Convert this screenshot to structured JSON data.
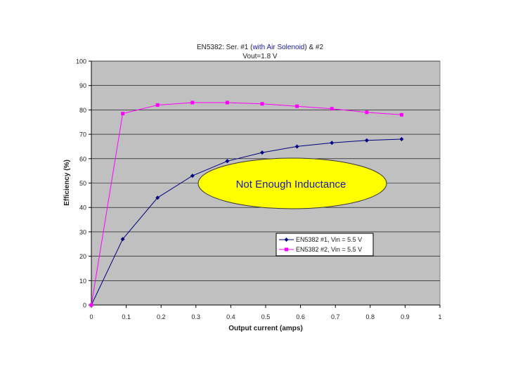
{
  "chart_data": {
    "type": "line",
    "title_prefix": "EN5382: Ser. #1 (",
    "title_highlight": "with Air Solenoid",
    "title_suffix": ") & #2",
    "subtitle": "Vout=1.8 V",
    "xlabel": "Output current (amps)",
    "ylabel": "Efficiency (%)",
    "xlim": [
      0,
      1
    ],
    "ylim": [
      0,
      100
    ],
    "x_ticks": [
      "0",
      "0.1",
      "0.2",
      "0.3",
      "0.4",
      "0.5",
      "0.6",
      "0.7",
      "0.8",
      "0.9",
      "1"
    ],
    "y_ticks": [
      "0",
      "10",
      "20",
      "30",
      "40",
      "50",
      "60",
      "70",
      "80",
      "90",
      "100"
    ],
    "grid": "horizontal",
    "plot_background": "#c0c0c0",
    "legend_position": "lower-right",
    "series": [
      {
        "name": "EN5382 #1, Vin = 5.5 V",
        "color": "#000080",
        "marker": "diamond",
        "x": [
          0,
          0.09,
          0.19,
          0.29,
          0.39,
          0.49,
          0.59,
          0.69,
          0.79,
          0.89
        ],
        "y": [
          0,
          27,
          44,
          53,
          59,
          62.5,
          65,
          66.5,
          67.5,
          68
        ]
      },
      {
        "name": "EN5382 #2, Vin = 5.5 V",
        "color": "#ff00ff",
        "marker": "square",
        "x": [
          0,
          0.09,
          0.19,
          0.29,
          0.39,
          0.49,
          0.59,
          0.69,
          0.79,
          0.89
        ],
        "y": [
          0,
          78.5,
          82,
          83,
          83,
          82.5,
          81.5,
          80.5,
          79,
          78
        ]
      }
    ],
    "annotations": [
      {
        "text": "Not Enough Inductance",
        "fill": "#ffff00"
      }
    ]
  }
}
